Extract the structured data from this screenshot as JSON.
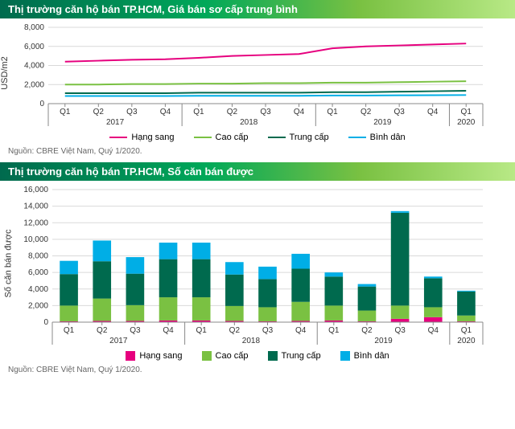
{
  "chart1": {
    "title": "Thị trường căn hộ bán TP.HCM, Giá bán sơ cấp trung bình",
    "type": "line",
    "ylabel": "USD/m2",
    "ylim": [
      0,
      8000
    ],
    "ytick_step": 2000,
    "yticks": [
      "0",
      "2,000",
      "4,000",
      "6,000",
      "8,000"
    ],
    "background_color": "#ffffff",
    "grid_color": "#d9d9d9",
    "axis_color": "#888888",
    "x_categories": [
      "Q1",
      "Q2",
      "Q3",
      "Q4",
      "Q1",
      "Q2",
      "Q3",
      "Q4",
      "Q1",
      "Q2",
      "Q3",
      "Q4",
      "Q1"
    ],
    "x_years": [
      {
        "label": "2017",
        "span": 4
      },
      {
        "label": "2018",
        "span": 4
      },
      {
        "label": "2019",
        "span": 4
      },
      {
        "label": "2020",
        "span": 1
      }
    ],
    "series": [
      {
        "name": "Hạng sang",
        "color": "#e6007e",
        "width": 2,
        "values": [
          4400,
          4500,
          4600,
          4650,
          4800,
          5000,
          5100,
          5200,
          5800,
          6000,
          6100,
          6200,
          6300
        ]
      },
      {
        "name": "Cao cấp",
        "color": "#7ac142",
        "width": 2,
        "values": [
          2000,
          2000,
          2050,
          2050,
          2100,
          2100,
          2150,
          2150,
          2200,
          2200,
          2250,
          2300,
          2350
        ]
      },
      {
        "name": "Trung cấp",
        "color": "#006a4e",
        "width": 2,
        "values": [
          1100,
          1100,
          1100,
          1100,
          1150,
          1150,
          1150,
          1150,
          1200,
          1200,
          1250,
          1300,
          1350
        ]
      },
      {
        "name": "Bình dân",
        "color": "#00aee6",
        "width": 2,
        "values": [
          800,
          800,
          800,
          800,
          820,
          820,
          820,
          820,
          850,
          850,
          870,
          880,
          900
        ]
      }
    ],
    "label_fontsize": 11,
    "tick_fontsize": 10
  },
  "chart2": {
    "title": "Thị trường căn hộ bán TP.HCM, Số căn bán được",
    "type": "stacked-bar",
    "ylabel": "Số căn bán được",
    "ylim": [
      0,
      16000
    ],
    "ytick_step": 2000,
    "yticks": [
      "0",
      "2,000",
      "4,000",
      "6,000",
      "8,000",
      "10,000",
      "12,000",
      "14,000",
      "16,000"
    ],
    "background_color": "#ffffff",
    "grid_color": "#d9d9d9",
    "axis_color": "#888888",
    "bar_width": 0.55,
    "x_categories": [
      "Q1",
      "Q2",
      "Q3",
      "Q4",
      "Q1",
      "Q2",
      "Q3",
      "Q4",
      "Q1",
      "Q2",
      "Q3",
      "Q4",
      "Q1"
    ],
    "x_years": [
      {
        "label": "2017",
        "span": 4
      },
      {
        "label": "2018",
        "span": 4
      },
      {
        "label": "2019",
        "span": 4
      },
      {
        "label": "2020",
        "span": 1
      }
    ],
    "segments": [
      {
        "name": "Hạng sang",
        "color": "#e6007e"
      },
      {
        "name": "Cao cấp",
        "color": "#7ac142"
      },
      {
        "name": "Trung cấp",
        "color": "#006a4e"
      },
      {
        "name": "Bình dân",
        "color": "#00aee6"
      }
    ],
    "data": [
      {
        "Hạng sang": 100,
        "Cao cấp": 1900,
        "Trung cấp": 3800,
        "Bình dân": 1600
      },
      {
        "Hạng sang": 150,
        "Cao cấp": 2700,
        "Trung cấp": 4500,
        "Bình dân": 2500
      },
      {
        "Hạng sang": 150,
        "Cao cấp": 1900,
        "Trung cấp": 3800,
        "Bình dân": 2000
      },
      {
        "Hạng sang": 200,
        "Cao cấp": 2800,
        "Trung cấp": 4600,
        "Bình dân": 2000
      },
      {
        "Hạng sang": 200,
        "Cao cấp": 2800,
        "Trung cấp": 4600,
        "Bình dân": 2000
      },
      {
        "Hạng sang": 150,
        "Cao cấp": 1800,
        "Trung cấp": 3800,
        "Bình dân": 1500
      },
      {
        "Hạng sang": 100,
        "Cao cấp": 1700,
        "Trung cấp": 3400,
        "Bình dân": 1500
      },
      {
        "Hạng sang": 150,
        "Cao cấp": 2300,
        "Trung cấp": 4000,
        "Bình dân": 1800
      },
      {
        "Hạng sang": 200,
        "Cao cấp": 1800,
        "Trung cấp": 3500,
        "Bình dân": 500
      },
      {
        "Hạng sang": 100,
        "Cao cấp": 1300,
        "Trung cấp": 2900,
        "Bình dân": 300
      },
      {
        "Hạng sang": 400,
        "Cao cấp": 1600,
        "Trung cấp": 11200,
        "Bình dân": 200
      },
      {
        "Hạng sang": 600,
        "Cao cấp": 1200,
        "Trung cấp": 3500,
        "Bình dân": 200
      },
      {
        "Hạng sang": 100,
        "Cao cấp": 700,
        "Trung cấp": 2900,
        "Bình dân": 100
      }
    ],
    "label_fontsize": 11,
    "tick_fontsize": 10
  },
  "source_text": "Nguồn: CBRE Việt Nam, Quý 1/2020.",
  "legend": {
    "l1": "Hạng sang",
    "l2": "Cao cấp",
    "l3": "Trung cấp",
    "l4": "Bình dân"
  }
}
